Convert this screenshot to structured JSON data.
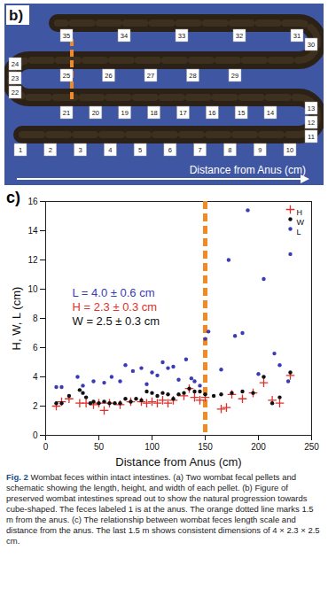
{
  "panel_b": {
    "label": "b)",
    "arrow_text": "Distance from Anus (cm)",
    "pellet_labels": [
      "1",
      "2",
      "3",
      "4",
      "5",
      "6",
      "7",
      "8",
      "9",
      "10",
      "11",
      "12",
      "13",
      "14",
      "15",
      "16",
      "17",
      "18",
      "19",
      "20",
      "21",
      "22",
      "23",
      "24",
      "25",
      "26",
      "27",
      "28",
      "29",
      "30",
      "31",
      "32",
      "33",
      "34",
      "35"
    ]
  },
  "chart_data": {
    "type": "scatter",
    "panel_label": "c)",
    "xlabel": "Distance from Anus (cm)",
    "ylabel": "H, W, L (cm)",
    "xlim": [
      0,
      250
    ],
    "xticks": [
      0,
      50,
      100,
      150,
      200,
      250
    ],
    "ylim": [
      0,
      16
    ],
    "yticks": [
      0,
      2,
      4,
      6,
      8,
      10,
      12,
      14,
      16
    ],
    "grid": false,
    "legend": "top-right",
    "reference_line": {
      "x": 150,
      "color": "#f08a24",
      "line_style": "dashed"
    },
    "annotations": [
      {
        "text": "L = 4.0 ± 0.6 cm",
        "color": "#3b3bb5"
      },
      {
        "text": "H = 2.3 ± 0.3 cm",
        "color": "#e0302a"
      },
      {
        "text": "W = 2.5 ± 0.3 cm",
        "color": "#111111"
      }
    ],
    "series": [
      {
        "name": "H",
        "color": "#e0302a",
        "marker": "plus",
        "x": [
          10,
          15,
          22,
          32,
          38,
          45,
          50,
          55,
          60,
          70,
          80,
          90,
          95,
          100,
          105,
          110,
          115,
          120,
          130,
          135,
          140,
          145,
          150,
          165,
          170,
          175,
          185,
          195,
          205,
          213,
          220,
          230
        ],
        "values": [
          2.0,
          2.3,
          2.5,
          2.2,
          2.2,
          2.1,
          2.2,
          1.7,
          2.2,
          2.1,
          2.3,
          2.3,
          2.2,
          2.3,
          2.2,
          2.4,
          2.2,
          2.4,
          2.7,
          3.2,
          2.6,
          2.4,
          2.6,
          1.8,
          1.9,
          2.8,
          2.5,
          2.9,
          3.6,
          2.4,
          2.2,
          4.1
        ]
      },
      {
        "name": "W",
        "color": "#111111",
        "marker": "circle",
        "x": [
          10,
          15,
          22,
          32,
          35,
          38,
          42,
          45,
          50,
          55,
          60,
          65,
          70,
          75,
          80,
          85,
          90,
          95,
          100,
          105,
          110,
          115,
          120,
          125,
          130,
          135,
          140,
          145,
          150,
          158,
          165,
          175,
          185,
          195,
          205,
          213,
          220,
          230
        ],
        "values": [
          2.2,
          2.2,
          2.7,
          3.1,
          2.9,
          2.6,
          2.2,
          2.3,
          2.2,
          2.3,
          2.2,
          2.2,
          2.2,
          2.5,
          2.3,
          2.5,
          2.4,
          3.0,
          2.9,
          2.7,
          2.9,
          2.8,
          2.5,
          2.8,
          2.9,
          3.2,
          3.0,
          3.0,
          2.8,
          2.7,
          2.8,
          2.9,
          3.0,
          2.9,
          4.0,
          2.2,
          2.6,
          4.3
        ]
      },
      {
        "name": "L",
        "color": "#3b3bb5",
        "marker": "circle",
        "x": [
          10,
          15,
          30,
          35,
          45,
          55,
          62,
          70,
          75,
          82,
          90,
          95,
          100,
          105,
          110,
          115,
          120,
          125,
          132,
          137,
          140,
          145,
          150,
          153,
          165,
          172,
          178,
          185,
          190,
          200,
          205,
          215,
          220,
          228,
          230
        ],
        "values": [
          3.3,
          3.3,
          4.0,
          3.4,
          3.7,
          3.6,
          4.0,
          3.7,
          4.8,
          4.4,
          4.6,
          3.5,
          4.3,
          4.1,
          5.0,
          4.6,
          4.7,
          3.8,
          5.2,
          3.9,
          3.7,
          3.4,
          6.6,
          7.1,
          4.5,
          12.0,
          6.8,
          7.0,
          15.4,
          4.2,
          10.7,
          5.6,
          4.8,
          3.7,
          12.4
        ]
      }
    ]
  },
  "caption": {
    "label": "Fig. 2",
    "text": "Wombat feces within intact intestines. (a) Two wombat fecal pellets and schematic showing the length, height, and width of each pellet. (b) Figure of preserved wombat intestines spread out to show the natural progression towards cube-shaped. The feces labeled 1 is at the anus. The orange dotted line marks 1.5 m from the anus. (c) The relationship between wombat feces length scale and distance from the anus. The last 1.5 m shows consistent dimensions of 4 × 2.3 × 2.5 cm."
  }
}
